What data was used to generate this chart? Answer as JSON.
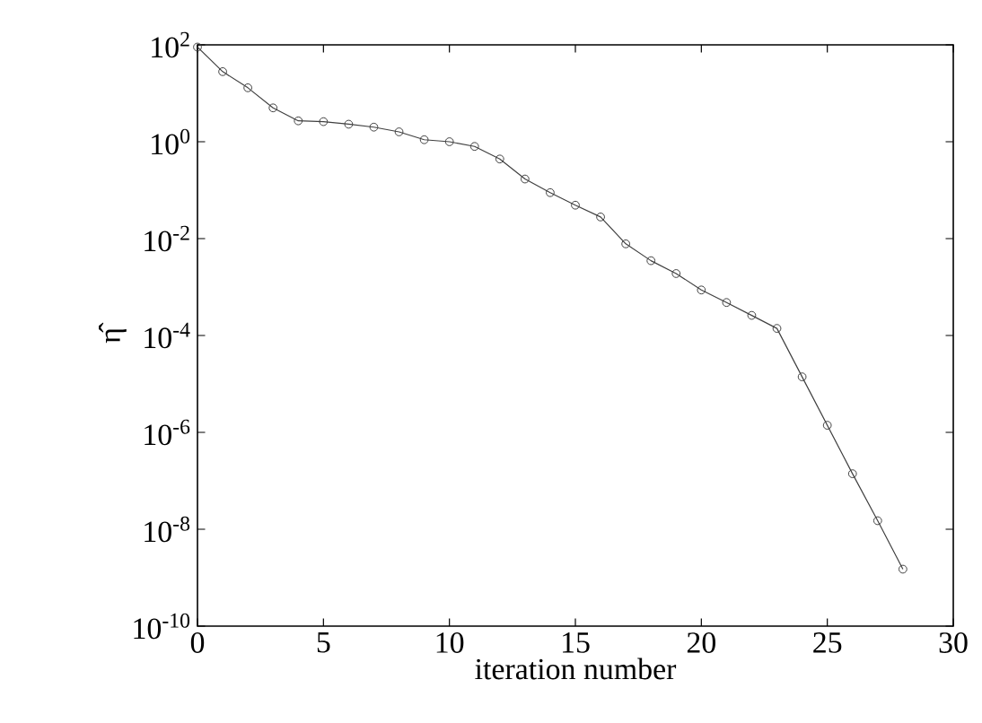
{
  "chart_data": {
    "type": "line",
    "xlabel": "iteration number",
    "ylabel": "η̂",
    "x": [
      0,
      1,
      2,
      3,
      4,
      5,
      6,
      7,
      8,
      9,
      10,
      11,
      12,
      13,
      14,
      15,
      16,
      17,
      18,
      19,
      20,
      21,
      22,
      23,
      24,
      25,
      26,
      27,
      28
    ],
    "series": [
      {
        "color": "#404040",
        "values": [
          90,
          28,
          13,
          5.0,
          2.7,
          2.6,
          2.3,
          2.0,
          1.6,
          1.1,
          1.0,
          0.8,
          0.44,
          0.17,
          0.089,
          0.049,
          0.028,
          0.0078,
          0.0035,
          0.0019,
          0.00087,
          0.00048,
          0.00026,
          0.00014,
          1.4e-05,
          1.4e-06,
          1.4e-07,
          1.5e-08,
          1.5e-09
        ]
      }
    ],
    "log": "y",
    "marker": "circle",
    "line_style": "solid",
    "grid": false,
    "xlim": [
      0,
      30
    ],
    "xticks": [
      0,
      5,
      10,
      15,
      20,
      25,
      30
    ],
    "ylim": [
      1e-10,
      100
    ],
    "yticks": [
      {
        "value": 1e-10,
        "label": "10$^{-10}$"
      },
      {
        "value": 1e-08,
        "label": "10$^{-8}$"
      },
      {
        "value": 1e-06,
        "label": "10$^{-6}$"
      },
      {
        "value": 0.0001,
        "label": "10$^{-4}$"
      },
      {
        "value": 0.01,
        "label": "10$^{-2}$"
      },
      {
        "value": 1,
        "label": "10$^{0}$"
      },
      {
        "value": 100,
        "label": "10$^{2}$"
      }
    ]
  }
}
